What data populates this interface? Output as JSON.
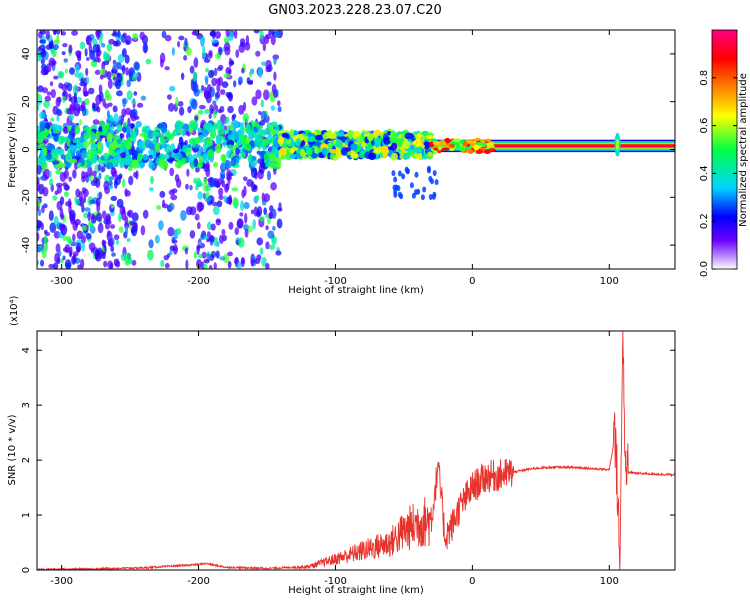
{
  "title": "GN03.2023.228.23.07.C20",
  "chart_data": [
    {
      "type": "heatmap",
      "xlabel": "Height of straight line (km)",
      "ylabel": "Frequency (Hz)",
      "xlim": [
        -318,
        148
      ],
      "ylim": [
        -50,
        50
      ],
      "xticks": [
        -300,
        -200,
        -100,
        0,
        100
      ],
      "xtick_labels": [
        "-300",
        "-200",
        "-100",
        "0",
        "100"
      ],
      "yticks": [
        -40,
        -20,
        0,
        20,
        40
      ],
      "ytick_labels": [
        "-40",
        "-20",
        "0",
        "20",
        "40"
      ],
      "colorbar": {
        "label": "Normalized spectral amplitude",
        "range": [
          0,
          1
        ],
        "ticks": [
          0.0,
          0.2,
          0.4,
          0.6,
          0.8
        ],
        "tick_labels": [
          "0.0",
          "0.2",
          "0.4",
          "0.6",
          "0.8"
        ],
        "colors": [
          "#ffffff",
          "#6a00ff",
          "#0000ff",
          "#00d5ff",
          "#00ff44",
          "#ffff00",
          "#ff8000",
          "#ff0000",
          "#ff0080"
        ]
      },
      "regions": [
        {
          "x": [
            -318,
            -140
          ],
          "freq_center": 2,
          "description": "diffuse noise across all frequencies",
          "peak_amp": 0.35
        },
        {
          "x": [
            -140,
            -30
          ],
          "freq_center": 2,
          "band_halfwidth": 5,
          "peak_amp": 0.45
        },
        {
          "x": [
            -30,
            148
          ],
          "freq_center": 1.5,
          "band_halfwidth": 1.5,
          "peak_amp": 0.95
        }
      ]
    },
    {
      "type": "line",
      "xlabel": "Height of straight line (km)",
      "ylabel": "SNR (10 * v/v)",
      "y_multiplier": "(x10⁴)",
      "xlim": [
        -318,
        148
      ],
      "ylim": [
        0,
        4.35
      ],
      "xticks": [
        -300,
        -200,
        -100,
        0,
        100
      ],
      "xtick_labels": [
        "-300",
        "-200",
        "-100",
        "0",
        "100"
      ],
      "yticks": [
        0,
        1,
        2,
        3,
        4
      ],
      "ytick_labels": [
        "0",
        "1",
        "2",
        "3",
        "4"
      ],
      "series": [
        {
          "color": "#e8322c",
          "x": [
            -318,
            -280,
            -240,
            -200,
            -195,
            -180,
            -150,
            -120,
            -100,
            -80,
            -60,
            -50,
            -40,
            -30,
            -25,
            -20,
            -15,
            -10,
            -5,
            0,
            5,
            10,
            20,
            30,
            40,
            50,
            60,
            70,
            80,
            90,
            100,
            104,
            106,
            108,
            110,
            112,
            115,
            120,
            130,
            140,
            148
          ],
          "y": [
            0.01,
            0.02,
            0.04,
            0.1,
            0.12,
            0.05,
            0.03,
            0.06,
            0.2,
            0.35,
            0.5,
            0.7,
            0.85,
            0.9,
            1.9,
            0.6,
            0.8,
            1.1,
            1.3,
            1.5,
            1.6,
            1.7,
            1.72,
            1.78,
            1.83,
            1.86,
            1.87,
            1.87,
            1.86,
            1.84,
            1.83,
            2.4,
            1.6,
            0.2,
            4.35,
            1.7,
            1.78,
            1.76,
            1.75,
            1.74,
            1.73
          ]
        }
      ]
    }
  ]
}
